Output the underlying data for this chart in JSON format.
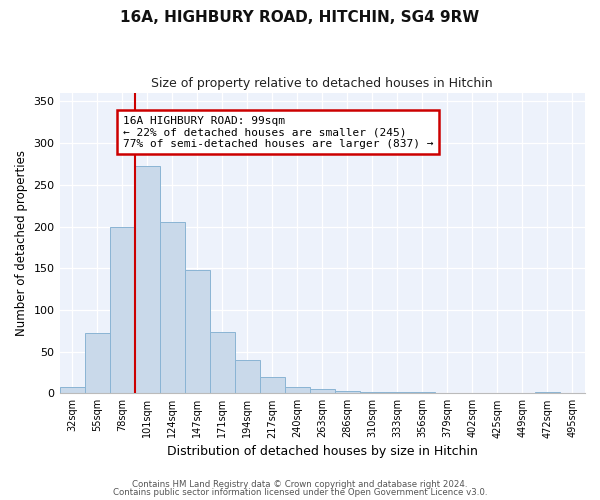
{
  "title": "16A, HIGHBURY ROAD, HITCHIN, SG4 9RW",
  "subtitle": "Size of property relative to detached houses in Hitchin",
  "xlabel": "Distribution of detached houses by size in Hitchin",
  "ylabel": "Number of detached properties",
  "bar_labels": [
    "32sqm",
    "55sqm",
    "78sqm",
    "101sqm",
    "124sqm",
    "147sqm",
    "171sqm",
    "194sqm",
    "217sqm",
    "240sqm",
    "263sqm",
    "286sqm",
    "310sqm",
    "333sqm",
    "356sqm",
    "379sqm",
    "402sqm",
    "425sqm",
    "449sqm",
    "472sqm",
    "495sqm"
  ],
  "bar_values": [
    7,
    72,
    200,
    273,
    205,
    148,
    74,
    40,
    20,
    7,
    5,
    3,
    2,
    1,
    1,
    0,
    0,
    0,
    0,
    2,
    0
  ],
  "bar_color": "#c9d9ea",
  "bar_edgecolor": "#8ab4d4",
  "ylim": [
    0,
    360
  ],
  "yticks": [
    0,
    50,
    100,
    150,
    200,
    250,
    300,
    350
  ],
  "property_line_color": "#cc0000",
  "annotation_title": "16A HIGHBURY ROAD: 99sqm",
  "annotation_line1": "← 22% of detached houses are smaller (245)",
  "annotation_line2": "77% of semi-detached houses are larger (837) →",
  "annotation_box_edgecolor": "#cc0000",
  "footnote1": "Contains HM Land Registry data © Crown copyright and database right 2024.",
  "footnote2": "Contains public sector information licensed under the Open Government Licence v3.0.",
  "background_color": "#edf2fb",
  "grid_color": "#ffffff"
}
